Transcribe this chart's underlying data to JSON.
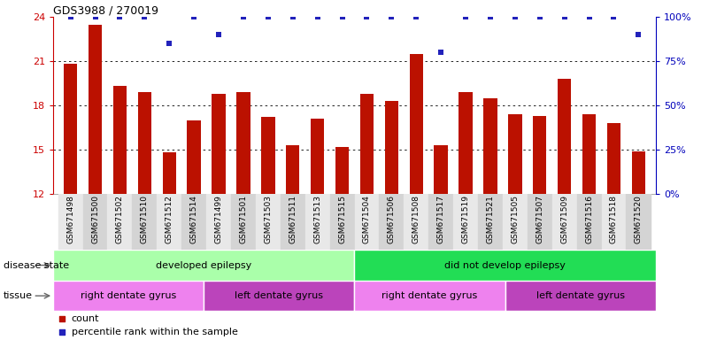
{
  "title": "GDS3988 / 270019",
  "samples": [
    "GSM671498",
    "GSM671500",
    "GSM671502",
    "GSM671510",
    "GSM671512",
    "GSM671514",
    "GSM671499",
    "GSM671501",
    "GSM671503",
    "GSM671511",
    "GSM671513",
    "GSM671515",
    "GSM671504",
    "GSM671506",
    "GSM671508",
    "GSM671517",
    "GSM671519",
    "GSM671521",
    "GSM671505",
    "GSM671507",
    "GSM671509",
    "GSM671516",
    "GSM671518",
    "GSM671520"
  ],
  "bar_values": [
    20.8,
    23.5,
    19.3,
    18.9,
    14.8,
    17.0,
    18.8,
    18.9,
    17.2,
    15.3,
    17.1,
    15.2,
    18.8,
    18.3,
    21.5,
    15.3,
    18.9,
    18.5,
    17.4,
    17.3,
    19.8,
    17.4,
    16.8,
    14.9
  ],
  "dot_values": [
    100,
    100,
    100,
    100,
    85,
    100,
    90,
    100,
    100,
    100,
    100,
    100,
    100,
    100,
    100,
    80,
    100,
    100,
    100,
    100,
    100,
    100,
    100,
    90
  ],
  "ylim_left": [
    12,
    24
  ],
  "ylim_right": [
    0,
    100
  ],
  "yticks_left": [
    12,
    15,
    18,
    21,
    24
  ],
  "yticks_right": [
    0,
    25,
    50,
    75,
    100
  ],
  "yticklabels_right": [
    "0%",
    "25%",
    "50%",
    "75%",
    "100%"
  ],
  "disease_state_groups": [
    {
      "label": "developed epilepsy",
      "start": 0,
      "end": 12,
      "color": "#AAFFAA"
    },
    {
      "label": "did not develop epilepsy",
      "start": 12,
      "end": 24,
      "color": "#22DD55"
    }
  ],
  "tissue_groups": [
    {
      "label": "right dentate gyrus",
      "start": 0,
      "end": 6,
      "color": "#EE82EE"
    },
    {
      "label": "left dentate gyrus",
      "start": 6,
      "end": 12,
      "color": "#BB44BB"
    },
    {
      "label": "right dentate gyrus",
      "start": 12,
      "end": 18,
      "color": "#EE82EE"
    },
    {
      "label": "left dentate gyrus",
      "start": 18,
      "end": 24,
      "color": "#BB44BB"
    }
  ],
  "bar_color": "#BB1100",
  "dot_color": "#2222BB",
  "grid_color": "#000000",
  "left_axis_color": "#CC0000",
  "right_axis_color": "#0000BB",
  "legend_count_label": "count",
  "legend_pct_label": "percentile rank within the sample",
  "disease_label": "disease state",
  "tissue_label": "tissue",
  "bg_color": "#FFFFFF"
}
